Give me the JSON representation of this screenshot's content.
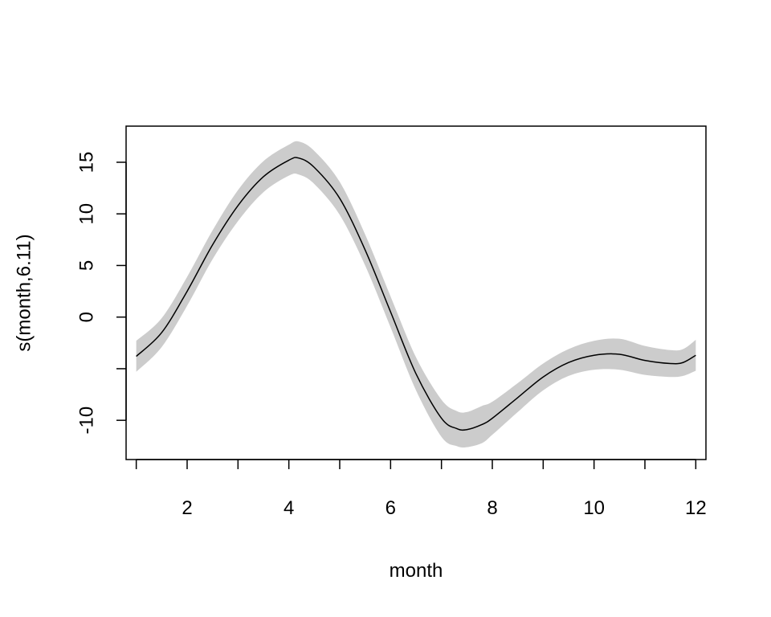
{
  "chart_data": {
    "type": "line",
    "title": "",
    "xlabel": "month",
    "ylabel": "s(month,6.11)",
    "xlim": [
      0.8,
      12.2
    ],
    "ylim": [
      -13.8,
      18.5
    ],
    "x_ticks": [
      1,
      2,
      3,
      4,
      5,
      6,
      7,
      8,
      9,
      10,
      11,
      12
    ],
    "x_tick_labels": [
      "",
      "2",
      "",
      "4",
      "",
      "6",
      "",
      "8",
      "",
      "10",
      "",
      "12"
    ],
    "y_ticks": [
      -10,
      -5,
      0,
      5,
      10,
      15
    ],
    "y_tick_labels": [
      "-10",
      "",
      "0",
      "5",
      "10",
      "15"
    ],
    "grid": false,
    "colors": {
      "line": "#000000",
      "band": "#cccccc"
    },
    "series": [
      {
        "x": [
          1.0,
          1.5,
          2.0,
          2.5,
          3.0,
          3.5,
          4.0,
          4.2,
          4.5,
          5.0,
          5.5,
          6.0,
          6.5,
          7.0,
          7.3,
          7.5,
          7.8,
          8.0,
          8.5,
          9.0,
          9.5,
          10.0,
          10.5,
          11.0,
          11.5,
          11.75,
          12.0
        ],
        "y": [
          -3.8,
          -1.5,
          2.5,
          7.0,
          10.8,
          13.6,
          15.2,
          15.4,
          14.5,
          11.5,
          6.5,
          0.5,
          -5.5,
          -9.8,
          -10.8,
          -10.9,
          -10.4,
          -9.8,
          -7.8,
          -5.8,
          -4.4,
          -3.7,
          -3.6,
          -4.2,
          -4.5,
          -4.4,
          -3.7
        ],
        "lower": [
          -5.3,
          -2.9,
          1.1,
          5.6,
          9.3,
          12.1,
          13.7,
          13.8,
          12.9,
          9.9,
          5.0,
          -1.0,
          -7.1,
          -11.6,
          -12.5,
          -12.6,
          -12.2,
          -11.4,
          -9.2,
          -7.1,
          -5.7,
          -5.1,
          -5.1,
          -5.6,
          -5.8,
          -5.7,
          -5.2
        ],
        "upper": [
          -2.3,
          -0.1,
          3.9,
          8.4,
          12.3,
          15.1,
          16.7,
          17.0,
          16.1,
          13.1,
          8.0,
          2.0,
          -3.9,
          -8.0,
          -9.1,
          -9.2,
          -8.6,
          -8.2,
          -6.4,
          -4.5,
          -3.1,
          -2.3,
          -2.1,
          -2.8,
          -3.2,
          -3.1,
          -2.2
        ]
      }
    ]
  }
}
